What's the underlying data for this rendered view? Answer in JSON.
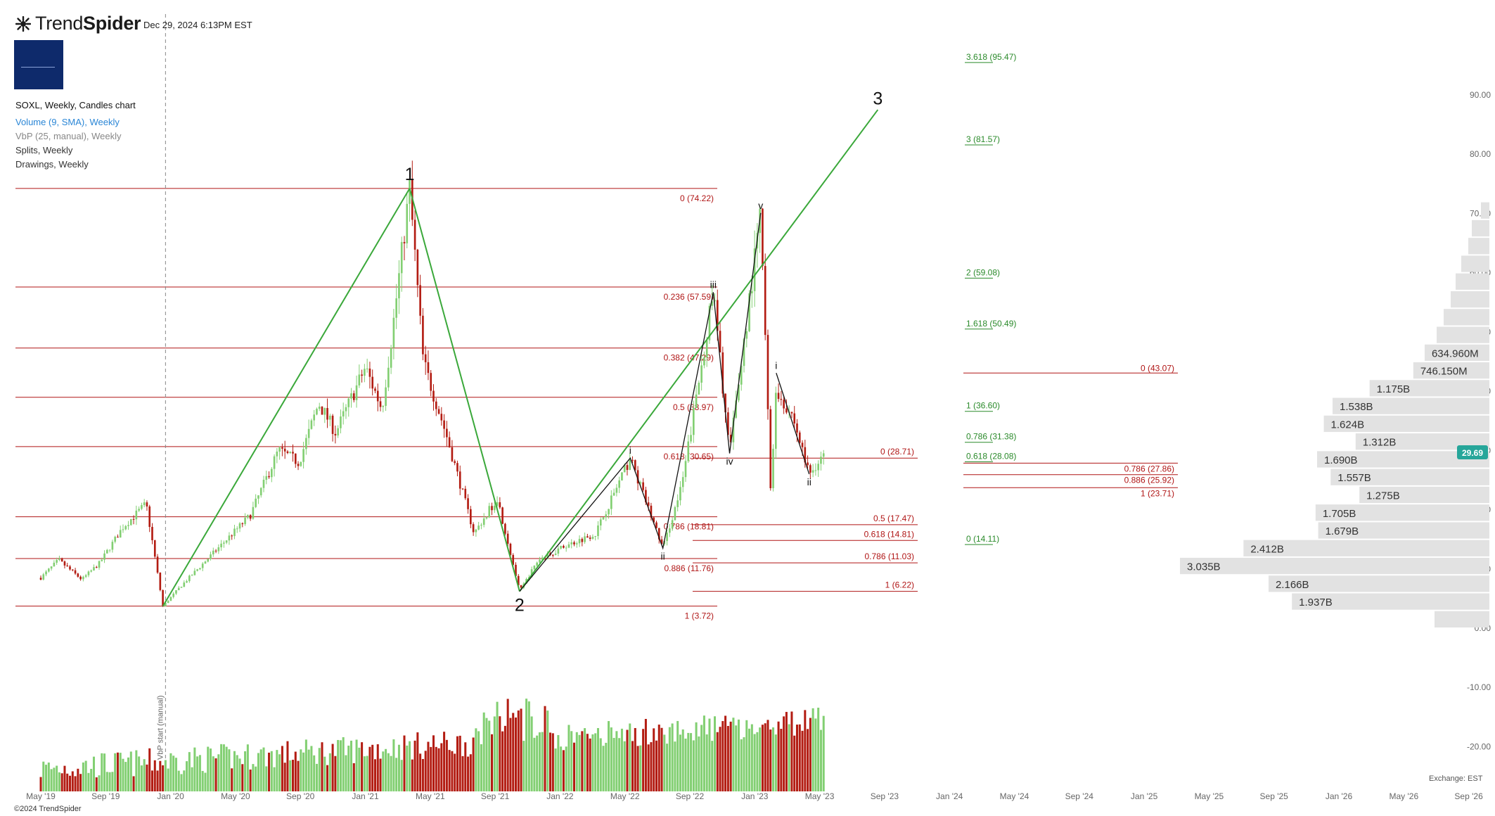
{
  "header": {
    "brand_light": "Trend",
    "brand_bold": "Spider",
    "datetime": "Dec 29, 2024 6:13PM EST",
    "symbol_line": "SOXL, Weekly, Candles chart",
    "indicators": [
      "Volume (9, SMA), Weekly",
      "VbP (25, manual), Weekly",
      "Splits, Weekly",
      "Drawings, Weekly"
    ]
  },
  "footer": {
    "copyright": "©2024 TrendSpider",
    "exchange": "Exchange: EST"
  },
  "colors": {
    "up": "#82cf72",
    "down": "#b31c12",
    "fib": "#b01515",
    "ext": "#2a8a2a",
    "trend": "#3aa83a",
    "price_badge": "#26a69a",
    "vbp": "#e2e2e2"
  },
  "chart_data": {
    "type": "candlestick",
    "symbol": "SOXL",
    "timeframe": "Weekly",
    "x_ticks": [
      "May '19",
      "Sep '19",
      "Jan '20",
      "May '20",
      "Sep '20",
      "Jan '21",
      "May '21",
      "Sep '21",
      "Jan '22",
      "May '22",
      "Sep '22",
      "Jan '23",
      "May '23",
      "Sep '23",
      "Jan '24",
      "May '24",
      "Sep '24",
      "Jan '25",
      "May '25",
      "Sep '25",
      "Jan '26",
      "May '26",
      "Sep '26"
    ],
    "y_ticks": [
      "90.00",
      "80.00",
      "70.00",
      "60.00",
      "50.00",
      "40.00",
      "30.00",
      "20.00",
      "10.00",
      "0.00",
      "-10.00",
      "-20.00"
    ],
    "y_range": [
      -27,
      97
    ],
    "last_price": "29.69",
    "vline_label": "VbP start (manual)",
    "price_path": [
      [
        "2019-04-29",
        8.5
      ],
      [
        "2019-06-15",
        11.5
      ],
      [
        "2019-08-15",
        8.2
      ],
      [
        "2019-10-01",
        11
      ],
      [
        "2019-12-01",
        17
      ],
      [
        "2020-02-01",
        21
      ],
      [
        "2020-03-16",
        3.7
      ],
      [
        "2020-05-01",
        7
      ],
      [
        "2020-08-01",
        13
      ],
      [
        "2020-11-01",
        19
      ],
      [
        "2021-01-15",
        30
      ],
      [
        "2021-03-10",
        28
      ],
      [
        "2021-05-01",
        38
      ],
      [
        "2021-06-15",
        33
      ],
      [
        "2021-09-01",
        44
      ],
      [
        "2021-10-15",
        37
      ],
      [
        "2021-11-15",
        52
      ],
      [
        "2021-12-27",
        74.22
      ],
      [
        "2022-02-01",
        45
      ],
      [
        "2022-04-01",
        33
      ],
      [
        "2022-06-15",
        16
      ],
      [
        "2022-08-15",
        22
      ],
      [
        "2022-10-13",
        6.22
      ],
      [
        "2022-12-01",
        11.5
      ],
      [
        "2023-02-15",
        14
      ],
      [
        "2023-05-01",
        16
      ],
      [
        "2023-08-01",
        28.71
      ],
      [
        "2023-10-26",
        13.5
      ],
      [
        "2023-12-15",
        24
      ],
      [
        "2024-03-07",
        56.7
      ],
      [
        "2024-04-19",
        29.5
      ],
      [
        "2024-07-10",
        70.08
      ],
      [
        "2024-08-05",
        23.7
      ],
      [
        "2024-08-20",
        40
      ],
      [
        "2024-10-01",
        36
      ],
      [
        "2024-11-15",
        26
      ],
      [
        "2024-12-27",
        29.69
      ]
    ],
    "volume_range": [
      0,
      1
    ],
    "fib_retracement_major": {
      "levels": [
        {
          "ratio": "0",
          "price": 74.22,
          "label": "0 (74.22)"
        },
        {
          "ratio": "0.236",
          "price": 57.59,
          "label": "0.236 (57.59)"
        },
        {
          "ratio": "0.382",
          "price": 47.29,
          "label": "0.382 (47.29)"
        },
        {
          "ratio": "0.5",
          "price": 38.97,
          "label": "0.5 (38.97)"
        },
        {
          "ratio": "0.618",
          "price": 30.65,
          "label": "0.618 (30.65)"
        },
        {
          "ratio": "0.786",
          "price": 18.81,
          "label": "0.786 (18.81)"
        },
        {
          "ratio": "0.886",
          "price": 11.76,
          "label": "0.886 (11.76)"
        },
        {
          "ratio": "1",
          "price": 3.72,
          "label": "1 (3.72)"
        }
      ]
    },
    "fib_retracement_2023": {
      "levels": [
        {
          "ratio": "0",
          "price": 28.71,
          "label": "0 (28.71)"
        },
        {
          "ratio": "0.5",
          "price": 17.47,
          "label": "0.5 (17.47)"
        },
        {
          "ratio": "0.618",
          "price": 14.81,
          "label": "0.618 (14.81)"
        },
        {
          "ratio": "0.786",
          "price": 11.03,
          "label": "0.786 (11.03)"
        },
        {
          "ratio": "1",
          "price": 6.22,
          "label": "1 (6.22)"
        }
      ]
    },
    "fib_retracement_2024": {
      "levels": [
        {
          "ratio": "0",
          "price": 43.07,
          "label": "0 (43.07)"
        },
        {
          "ratio": "0.786",
          "price": 27.86,
          "label": "0.786 (27.86)"
        },
        {
          "ratio": "0.886",
          "price": 25.92,
          "label": "0.886 (25.92)"
        },
        {
          "ratio": "1",
          "price": 23.71,
          "label": "1 (23.71)"
        }
      ]
    },
    "fib_extension": {
      "levels": [
        {
          "price": 95.47,
          "label": "3.618 (95.47)"
        },
        {
          "price": 81.57,
          "label": "3 (81.57)"
        },
        {
          "price": 59.08,
          "label": "2 (59.08)"
        },
        {
          "price": 50.49,
          "label": "1.618 (50.49)"
        },
        {
          "price": 36.6,
          "label": "1 (36.60)"
        },
        {
          "price": 31.38,
          "label": "0.786 (31.38)"
        },
        {
          "price": 28.08,
          "label": "0.618 (28.08)"
        },
        {
          "price": 14.11,
          "label": "0 (14.11)"
        }
      ]
    },
    "volume_by_price": [
      {
        "from": 0,
        "to": 3,
        "volume": 0,
        "label": ""
      },
      {
        "from": 3,
        "to": 6,
        "volume": 1.937,
        "label": "1.937B"
      },
      {
        "from": 6,
        "to": 9,
        "volume": 2.166,
        "label": "2.166B"
      },
      {
        "from": 9,
        "to": 12,
        "volume": 3.035,
        "label": "3.035B"
      },
      {
        "from": 12,
        "to": 15,
        "volume": 2.412,
        "label": "2.412B"
      },
      {
        "from": 15,
        "to": 18,
        "volume": 1.679,
        "label": "1.679B"
      },
      {
        "from": 18,
        "to": 21,
        "volume": 1.705,
        "label": "1.705B"
      },
      {
        "from": 21,
        "to": 24,
        "volume": 1.275,
        "label": "1.275B"
      },
      {
        "from": 24,
        "to": 27,
        "volume": 1.557,
        "label": "1.557B"
      },
      {
        "from": 27,
        "to": 30,
        "volume": 1.69,
        "label": "1.690B"
      },
      {
        "from": 30,
        "to": 33,
        "volume": 1.312,
        "label": "1.312B"
      },
      {
        "from": 33,
        "to": 36,
        "volume": 1.624,
        "label": "1.624B"
      },
      {
        "from": 36,
        "to": 39,
        "volume": 1.538,
        "label": "1.538B"
      },
      {
        "from": 39,
        "to": 42,
        "volume": 1.175,
        "label": "1.175B"
      },
      {
        "from": 42,
        "to": 45,
        "volume": 0.746,
        "label": "746.150M"
      },
      {
        "from": 45,
        "to": 48,
        "volume": 0.635,
        "label": "634.960M"
      },
      {
        "from": 48,
        "to": 51,
        "volume": 0.0,
        "label": ""
      },
      {
        "from": 51,
        "to": 54,
        "volume": 0.0,
        "label": ""
      },
      {
        "from": 54,
        "to": 57,
        "volume": 0.0,
        "label": ""
      },
      {
        "from": 57,
        "to": 60,
        "volume": 0.0,
        "label": ""
      },
      {
        "from": 60,
        "to": 63,
        "volume": 0.0,
        "label": ""
      },
      {
        "from": 63,
        "to": 66,
        "volume": 0.0,
        "label": ""
      },
      {
        "from": 66,
        "to": 69,
        "volume": 0.0,
        "label": ""
      },
      {
        "from": 69,
        "to": 72,
        "volume": 0.0,
        "label": ""
      }
    ],
    "wave_labels": [
      {
        "text": "1",
        "date": "2021-12-27",
        "price": 74.22
      },
      {
        "text": "2",
        "date": "2022-10-13",
        "price": 6.22
      },
      {
        "text": "3",
        "date": "2025-05-15",
        "price": 87
      }
    ],
    "subwave_labels": [
      {
        "text": "i",
        "date": "2023-08-01",
        "price": 28.71
      },
      {
        "text": "ii",
        "date": "2023-10-26",
        "price": 13.5
      },
      {
        "text": "iii",
        "date": "2024-03-07",
        "price": 56.7
      },
      {
        "text": "iv",
        "date": "2024-04-19",
        "price": 29.5
      },
      {
        "text": "v",
        "date": "2024-07-10",
        "price": 70.08
      },
      {
        "text": "i",
        "date": "2024-08-20",
        "price": 43.07
      },
      {
        "text": "ii",
        "date": "2024-11-15",
        "price": 26
      }
    ],
    "trendlines": [
      {
        "from": [
          "2020-03-16",
          3.7
        ],
        "to": [
          "2021-12-27",
          74.22
        ]
      },
      {
        "from": [
          "2021-12-27",
          74.22
        ],
        "to": [
          "2022-10-13",
          6.22
        ]
      },
      {
        "from": [
          "2022-10-13",
          6.22
        ],
        "to": [
          "2025-05-15",
          87.5
        ]
      }
    ],
    "wave_drawing": [
      [
        "2022-10-13",
        6.22
      ],
      [
        "2023-08-01",
        28.71
      ],
      [
        "2023-10-26",
        13.5
      ],
      [
        "2024-03-07",
        56.7
      ],
      [
        "2024-04-19",
        29.5
      ],
      [
        "2024-07-10",
        70.08
      ]
    ],
    "wave_drawing_2": [
      [
        "2024-08-20",
        43.07
      ],
      [
        "2024-11-15",
        26
      ]
    ],
    "vline_date": "2020-03-23"
  }
}
